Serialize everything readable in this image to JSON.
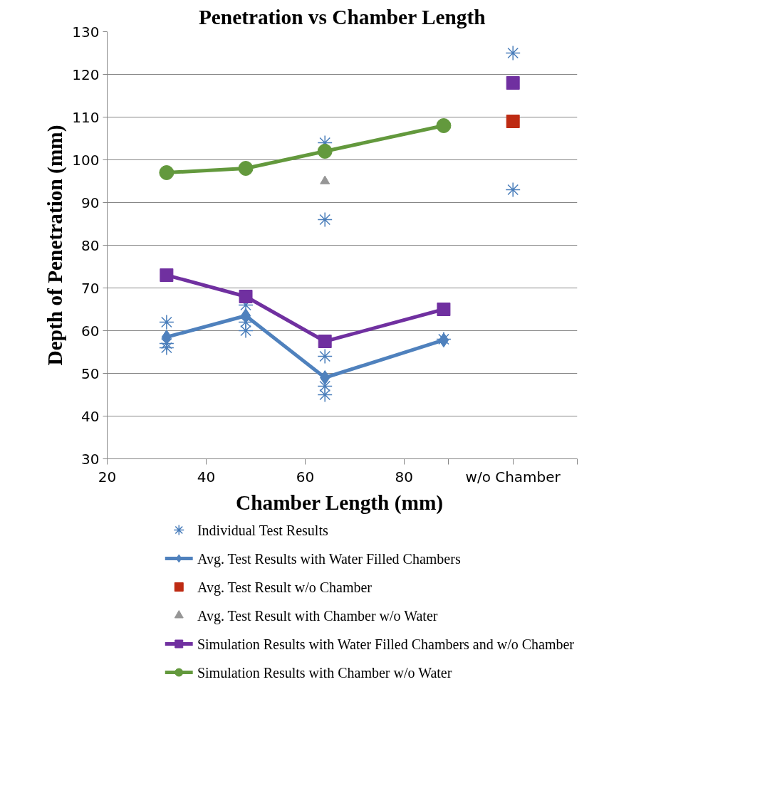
{
  "chart_data": {
    "type": "line",
    "title": "Penetration vs Chamber Length",
    "xlabel": "Chamber  Length (mm)",
    "ylabel": "Depth of Penetration (mm)",
    "xlim": [
      20,
      115
    ],
    "xticks": [
      20,
      40,
      60,
      80,
      {
        "value": 89,
        "label": null
      },
      {
        "value": 102,
        "label": "w/o Chamber"
      },
      {
        "value": 115,
        "label": null
      }
    ],
    "ylim": [
      30,
      130
    ],
    "yticks": [
      30,
      40,
      50,
      60,
      70,
      80,
      90,
      100,
      110,
      120,
      130
    ],
    "grid": "y",
    "legend": "bottom",
    "series": [
      {
        "name": "Individual Test Results",
        "type": "scatter",
        "marker": "cross",
        "color": "#4a7ebb",
        "x": [
          32,
          32,
          32,
          48,
          48,
          48,
          64,
          64,
          64,
          64,
          64,
          88,
          102,
          102
        ],
        "values": [
          62,
          57,
          56,
          66,
          62,
          60,
          104,
          86,
          54,
          47,
          45,
          58,
          125,
          93
        ]
      },
      {
        "name": "Avg. Test Results with Water Filled Chambers",
        "marker": "diamond",
        "color": "#4f81bd",
        "x": [
          32,
          48,
          64,
          88
        ],
        "values": [
          58.5,
          63.5,
          49,
          57.8
        ]
      },
      {
        "name": "Avg. Test Result w/o Chamber",
        "type": "scatter",
        "marker": "square",
        "color": "#be2b13",
        "x": [
          102
        ],
        "values": [
          109
        ]
      },
      {
        "name": "Avg. Test Result with Chamber w/o Water",
        "type": "scatter",
        "marker": "triangle",
        "color": "#969696",
        "x": [
          64
        ],
        "values": [
          95
        ]
      },
      {
        "name": "Simulation Results with Water Filled Chambers and w/o Chamber",
        "marker": "square",
        "color": "#7030a0",
        "x": [
          32,
          48,
          64,
          88
        ],
        "values": [
          73,
          68,
          57.5,
          65
        ]
      },
      {
        "type": "scatter",
        "marker": "square",
        "color": "#7030a0",
        "x": [
          102
        ],
        "values": [
          118
        ]
      },
      {
        "name": "Simulation Results with Chamber w/o Water",
        "marker": "circle",
        "color": "#63993d",
        "x": [
          32,
          48,
          64,
          88
        ],
        "values": [
          97,
          98,
          102,
          108
        ]
      }
    ]
  }
}
